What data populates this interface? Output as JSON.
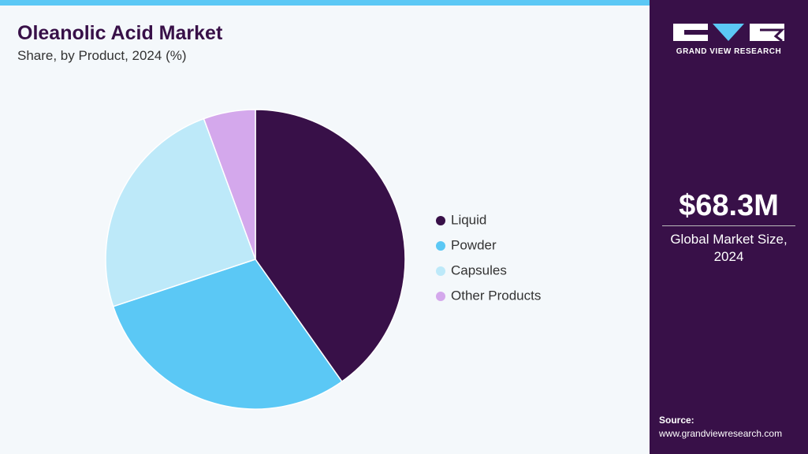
{
  "chart_data": {
    "type": "pie",
    "title": "Oleanolic Acid Market",
    "subtitle": "Share, by Product, 2024 (%)",
    "categories": [
      "Liquid",
      "Powder",
      "Capsules",
      "Other Products"
    ],
    "values": [
      40.2,
      29.7,
      24.5,
      5.6
    ],
    "colors": [
      "#381048",
      "#5bc8f5",
      "#bde9f9",
      "#d4a8ec"
    ]
  },
  "sidebar": {
    "brand": "GRAND VIEW RESEARCH",
    "market_size": "$68.3M",
    "market_size_label": "Global Market Size, 2024",
    "source_heading": "Source:",
    "source": "www.grandviewresearch.com"
  }
}
